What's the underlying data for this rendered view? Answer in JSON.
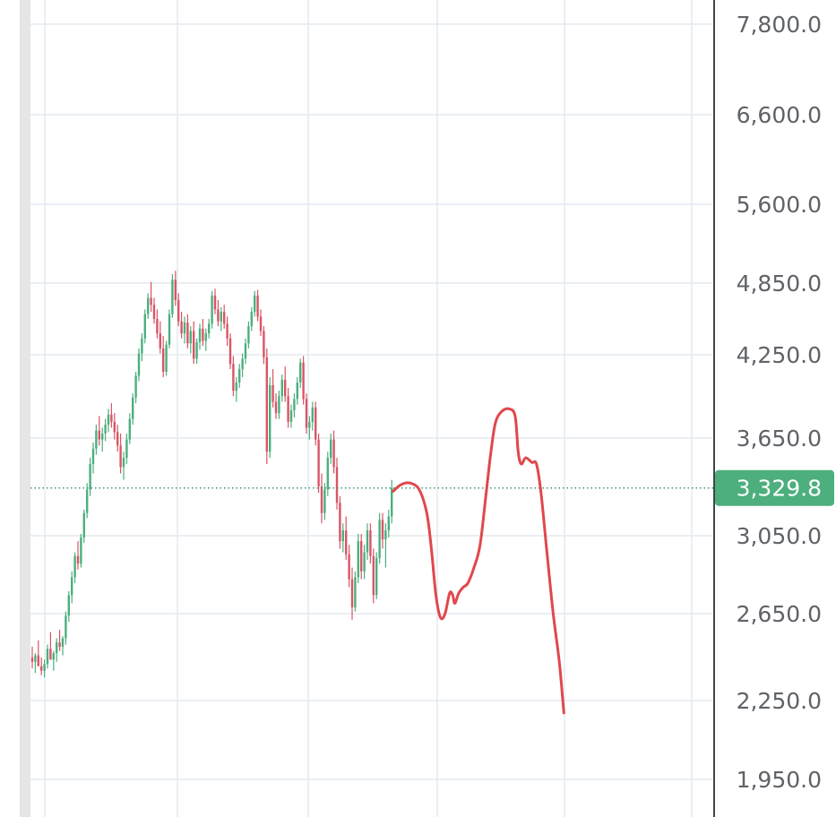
{
  "chart_data": {
    "type": "candlestick",
    "title": "",
    "xlabel": "",
    "ylabel": "",
    "ylim": [
      1850,
      8100
    ],
    "yscale": "log",
    "grid": true,
    "y_ticks": [
      "7,800.0",
      "6,600.0",
      "5,600.0",
      "4,850.0",
      "4,250.0",
      "3,650.0",
      "3,050.0",
      "2,650.0",
      "2,250.0",
      "1,950.0"
    ],
    "y_tick_values": [
      7800,
      6600,
      5600,
      4850,
      4250,
      3650,
      3050,
      2650,
      2250,
      1950
    ],
    "current_price": {
      "label": "3,329.8",
      "value": 3329.8
    },
    "colors": {
      "up": "#4caf7d",
      "down": "#d95565",
      "drawing": "#e0474c",
      "price_badge": "#4caf7d",
      "grid": "#e4eaf0",
      "axis": "#444444"
    },
    "candles": [
      [
        2440,
        2490,
        2390,
        2420
      ],
      [
        2420,
        2460,
        2370,
        2450
      ],
      [
        2450,
        2520,
        2410,
        2400
      ],
      [
        2400,
        2440,
        2360,
        2380
      ],
      [
        2380,
        2430,
        2350,
        2410
      ],
      [
        2410,
        2500,
        2390,
        2480
      ],
      [
        2480,
        2560,
        2440,
        2430
      ],
      [
        2430,
        2470,
        2380,
        2460
      ],
      [
        2460,
        2530,
        2420,
        2510
      ],
      [
        2510,
        2570,
        2470,
        2490
      ],
      [
        2490,
        2540,
        2450,
        2530
      ],
      [
        2530,
        2660,
        2500,
        2640
      ],
      [
        2640,
        2760,
        2610,
        2740
      ],
      [
        2740,
        2860,
        2700,
        2830
      ],
      [
        2830,
        2960,
        2800,
        2940
      ],
      [
        2940,
        3020,
        2870,
        2900
      ],
      [
        2900,
        3060,
        2880,
        3040
      ],
      [
        3040,
        3200,
        3010,
        3180
      ],
      [
        3180,
        3360,
        3150,
        3320
      ],
      [
        3320,
        3520,
        3280,
        3480
      ],
      [
        3480,
        3620,
        3420,
        3580
      ],
      [
        3580,
        3740,
        3540,
        3700
      ],
      [
        3700,
        3800,
        3600,
        3640
      ],
      [
        3640,
        3720,
        3560,
        3680
      ],
      [
        3680,
        3780,
        3630,
        3740
      ],
      [
        3740,
        3850,
        3690,
        3810
      ],
      [
        3810,
        3890,
        3720,
        3760
      ],
      [
        3760,
        3820,
        3640,
        3690
      ],
      [
        3690,
        3740,
        3560,
        3600
      ],
      [
        3600,
        3680,
        3420,
        3460
      ],
      [
        3460,
        3560,
        3380,
        3520
      ],
      [
        3520,
        3680,
        3480,
        3640
      ],
      [
        3640,
        3820,
        3610,
        3780
      ],
      [
        3780,
        3960,
        3740,
        3930
      ],
      [
        3930,
        4120,
        3890,
        4090
      ],
      [
        4090,
        4300,
        4050,
        4260
      ],
      [
        4260,
        4420,
        4200,
        4380
      ],
      [
        4380,
        4620,
        4340,
        4580
      ],
      [
        4580,
        4760,
        4540,
        4720
      ],
      [
        4720,
        4860,
        4600,
        4660
      ],
      [
        4660,
        4720,
        4500,
        4540
      ],
      [
        4540,
        4620,
        4380,
        4420
      ],
      [
        4420,
        4520,
        4260,
        4300
      ],
      [
        4300,
        4400,
        4080,
        4120
      ],
      [
        4120,
        4360,
        4090,
        4330
      ],
      [
        4330,
        4620,
        4300,
        4580
      ],
      [
        4580,
        4930,
        4550,
        4880
      ],
      [
        4880,
        4960,
        4650,
        4700
      ],
      [
        4700,
        4760,
        4480,
        4520
      ],
      [
        4520,
        4600,
        4380,
        4420
      ],
      [
        4420,
        4560,
        4340,
        4510
      ],
      [
        4510,
        4580,
        4300,
        4340
      ],
      [
        4340,
        4480,
        4260,
        4440
      ],
      [
        4440,
        4520,
        4180,
        4220
      ],
      [
        4220,
        4380,
        4180,
        4350
      ],
      [
        4350,
        4500,
        4290,
        4460
      ],
      [
        4460,
        4540,
        4320,
        4360
      ],
      [
        4360,
        4460,
        4280,
        4420
      ],
      [
        4420,
        4540,
        4380,
        4500
      ],
      [
        4500,
        4780,
        4460,
        4740
      ],
      [
        4740,
        4800,
        4580,
        4620
      ],
      [
        4620,
        4700,
        4480,
        4520
      ],
      [
        4520,
        4640,
        4440,
        4600
      ],
      [
        4600,
        4660,
        4460,
        4500
      ],
      [
        4500,
        4560,
        4320,
        4380
      ],
      [
        4380,
        4420,
        4140,
        4180
      ],
      [
        4180,
        4240,
        3940,
        3980
      ],
      [
        3980,
        4080,
        3900,
        4040
      ],
      [
        4040,
        4180,
        4000,
        4140
      ],
      [
        4140,
        4260,
        4080,
        4220
      ],
      [
        4220,
        4380,
        4180,
        4340
      ],
      [
        4340,
        4520,
        4300,
        4480
      ],
      [
        4480,
        4640,
        4440,
        4600
      ],
      [
        4600,
        4780,
        4560,
        4740
      ],
      [
        4740,
        4790,
        4520,
        4560
      ],
      [
        4560,
        4620,
        4400,
        4440
      ],
      [
        4440,
        4480,
        4180,
        4230
      ],
      [
        4230,
        4300,
        3480,
        3560
      ],
      [
        3560,
        4080,
        3520,
        4020
      ],
      [
        4020,
        4140,
        3860,
        3900
      ],
      [
        3900,
        3960,
        3780,
        3820
      ],
      [
        3820,
        3980,
        3780,
        3940
      ],
      [
        3940,
        4100,
        3900,
        4060
      ],
      [
        4060,
        4160,
        3900,
        3940
      ],
      [
        3940,
        4000,
        3720,
        3760
      ],
      [
        3760,
        3880,
        3720,
        3840
      ],
      [
        3840,
        3960,
        3790,
        3920
      ],
      [
        3920,
        4080,
        3880,
        4040
      ],
      [
        4040,
        4220,
        4000,
        4190
      ],
      [
        4190,
        4240,
        3880,
        3920
      ],
      [
        3920,
        3960,
        3680,
        3720
      ],
      [
        3720,
        3800,
        3640,
        3760
      ],
      [
        3760,
        3900,
        3700,
        3860
      ],
      [
        3860,
        3900,
        3600,
        3640
      ],
      [
        3640,
        3680,
        3300,
        3340
      ],
      [
        3340,
        3420,
        3120,
        3180
      ],
      [
        3180,
        3360,
        3140,
        3320
      ],
      [
        3320,
        3560,
        3280,
        3520
      ],
      [
        3520,
        3680,
        3480,
        3640
      ],
      [
        3640,
        3700,
        3420,
        3460
      ],
      [
        3460,
        3520,
        3200,
        3240
      ],
      [
        3240,
        3280,
        2980,
        3020
      ],
      [
        3020,
        3120,
        2960,
        3080
      ],
      [
        3080,
        3160,
        2920,
        2950
      ],
      [
        2950,
        3000,
        2780,
        2820
      ],
      [
        2820,
        2880,
        2620,
        2680
      ],
      [
        2680,
        2860,
        2660,
        2830
      ],
      [
        2830,
        3060,
        2800,
        3020
      ],
      [
        3020,
        3060,
        2820,
        2860
      ],
      [
        2860,
        3000,
        2820,
        2960
      ],
      [
        2960,
        3120,
        2920,
        3080
      ],
      [
        3080,
        3120,
        2900,
        2940
      ],
      [
        2940,
        2980,
        2700,
        2740
      ],
      [
        2740,
        2960,
        2720,
        2930
      ],
      [
        2930,
        3180,
        2900,
        3140
      ],
      [
        3140,
        3180,
        2980,
        3030
      ],
      [
        3030,
        3120,
        2880,
        3080
      ],
      [
        3080,
        3200,
        3040,
        3160
      ],
      [
        3160,
        3380,
        3120,
        3330
      ]
    ],
    "annotation_path": [
      {
        "idx": 118.5,
        "value": 3310
      },
      {
        "idx": 121.0,
        "value": 3350
      },
      {
        "idx": 124.0,
        "value": 3360
      },
      {
        "idx": 127.0,
        "value": 3320
      },
      {
        "idx": 129.5,
        "value": 3180
      },
      {
        "idx": 131.0,
        "value": 2980
      },
      {
        "idx": 132.5,
        "value": 2740
      },
      {
        "idx": 134.0,
        "value": 2630
      },
      {
        "idx": 135.5,
        "value": 2650
      },
      {
        "idx": 137.0,
        "value": 2750
      },
      {
        "idx": 138.0,
        "value": 2740
      },
      {
        "idx": 138.7,
        "value": 2700
      },
      {
        "idx": 140.0,
        "value": 2750
      },
      {
        "idx": 141.5,
        "value": 2780
      },
      {
        "idx": 143.0,
        "value": 2800
      },
      {
        "idx": 145.0,
        "value": 2880
      },
      {
        "idx": 147.0,
        "value": 3000
      },
      {
        "idx": 149.0,
        "value": 3300
      },
      {
        "idx": 150.5,
        "value": 3550
      },
      {
        "idx": 152.0,
        "value": 3750
      },
      {
        "idx": 154.0,
        "value": 3830
      },
      {
        "idx": 156.5,
        "value": 3850
      },
      {
        "idx": 158.5,
        "value": 3800
      },
      {
        "idx": 159.5,
        "value": 3560
      },
      {
        "idx": 160.5,
        "value": 3480
      },
      {
        "idx": 162.0,
        "value": 3520
      },
      {
        "idx": 164.0,
        "value": 3490
      },
      {
        "idx": 165.5,
        "value": 3480
      },
      {
        "idx": 167.0,
        "value": 3300
      },
      {
        "idx": 169.0,
        "value": 2950
      },
      {
        "idx": 171.0,
        "value": 2650
      },
      {
        "idx": 173.0,
        "value": 2420
      },
      {
        "idx": 174.5,
        "value": 2200
      }
    ]
  }
}
